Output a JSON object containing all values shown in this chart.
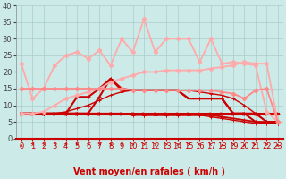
{
  "title": "",
  "xlabel": "Vent moyen/en rafales ( km/h )",
  "xlim": [
    -0.5,
    23.5
  ],
  "ylim": [
    0,
    40
  ],
  "yticks": [
    0,
    5,
    10,
    15,
    20,
    25,
    30,
    35,
    40
  ],
  "xticks": [
    0,
    1,
    2,
    3,
    4,
    5,
    6,
    7,
    8,
    9,
    10,
    11,
    12,
    13,
    14,
    15,
    16,
    17,
    18,
    19,
    20,
    21,
    22,
    23
  ],
  "bg_color": "#cceae8",
  "grid_color": "#aacccc",
  "lines": [
    {
      "x": [
        0,
        1,
        2,
        3,
        4,
        5,
        6,
        7,
        8,
        9,
        10,
        11,
        12,
        13,
        14,
        15,
        16,
        17,
        18,
        19,
        20,
        21,
        22,
        23
      ],
      "y": [
        7.5,
        7.5,
        7.5,
        7.5,
        7.5,
        7.5,
        7.5,
        7.5,
        7.5,
        7.5,
        7.5,
        7.5,
        7.5,
        7.5,
        7.5,
        7.5,
        7.5,
        7.5,
        7.5,
        7.5,
        7.5,
        7.5,
        7.5,
        7.5
      ],
      "color": "#cc0000",
      "lw": 2.2,
      "marker": ">",
      "ms": 2.5
    },
    {
      "x": [
        0,
        1,
        2,
        3,
        4,
        5,
        6,
        7,
        8,
        9,
        10,
        11,
        12,
        13,
        14,
        15,
        16,
        17,
        18,
        19,
        20,
        21,
        22,
        23
      ],
      "y": [
        7.5,
        7.5,
        7.5,
        7.5,
        7.5,
        7.5,
        7.5,
        7.5,
        7.5,
        7.5,
        7.0,
        7.0,
        7.0,
        7.0,
        7.0,
        7.0,
        7.0,
        7.0,
        6.5,
        6.0,
        5.5,
        5.0,
        5.0,
        5.0
      ],
      "color": "#cc0000",
      "lw": 1.3,
      "marker": "+",
      "ms": 3
    },
    {
      "x": [
        0,
        1,
        2,
        3,
        4,
        5,
        6,
        7,
        8,
        9,
        10,
        11,
        12,
        13,
        14,
        15,
        16,
        17,
        18,
        19,
        20,
        21,
        22,
        23
      ],
      "y": [
        7.5,
        7.5,
        7.5,
        7.5,
        7.5,
        7.5,
        7.5,
        7.5,
        7.5,
        7.5,
        7.5,
        7.0,
        7.0,
        7.0,
        7.0,
        7.0,
        7.0,
        6.5,
        6.0,
        5.5,
        5.0,
        4.5,
        4.5,
        4.5
      ],
      "color": "#cc0000",
      "lw": 1.0,
      "marker": "+",
      "ms": 3
    },
    {
      "x": [
        0,
        1,
        2,
        3,
        4,
        5,
        6,
        7,
        8,
        9,
        10,
        11,
        12,
        13,
        14,
        15,
        16,
        17,
        18,
        19,
        20,
        21,
        22,
        23
      ],
      "y": [
        7.5,
        7.5,
        7.5,
        7.5,
        8.0,
        9.0,
        10.0,
        11.5,
        13.0,
        14.0,
        14.5,
        14.5,
        14.5,
        14.5,
        14.5,
        14.5,
        14.0,
        13.5,
        13.0,
        12.0,
        10.0,
        7.5,
        5.0,
        4.5
      ],
      "color": "#cc0000",
      "lw": 1.0,
      "marker": "+",
      "ms": 3
    },
    {
      "x": [
        0,
        1,
        2,
        3,
        4,
        5,
        6,
        7,
        8,
        9,
        10,
        11,
        12,
        13,
        14,
        15,
        16,
        17,
        18,
        19,
        20,
        21,
        22,
        23
      ],
      "y": [
        7.5,
        7.5,
        7.5,
        7.5,
        7.5,
        7.5,
        7.5,
        12.5,
        18.0,
        15.0,
        14.5,
        14.5,
        14.5,
        14.5,
        14.5,
        12.0,
        12.0,
        12.0,
        12.0,
        7.5,
        7.5,
        7.5,
        5.0,
        5.0
      ],
      "color": "#cc0000",
      "lw": 1.5,
      "marker": "+",
      "ms": 3
    },
    {
      "x": [
        0,
        1,
        2,
        3,
        4,
        5,
        6,
        7,
        8,
        9,
        10,
        11,
        12,
        13,
        14,
        15,
        16,
        17,
        18,
        19,
        20,
        21,
        22,
        23
      ],
      "y": [
        7.5,
        7.5,
        7.5,
        7.5,
        7.5,
        12.5,
        12.5,
        15.0,
        18.0,
        14.5,
        14.5,
        14.5,
        14.5,
        14.5,
        14.5,
        12.0,
        12.0,
        12.0,
        12.0,
        7.5,
        7.5,
        5.0,
        4.5,
        4.5
      ],
      "color": "#cc0000",
      "lw": 1.5,
      "marker": "+",
      "ms": 3
    },
    {
      "x": [
        0,
        1,
        2,
        3,
        4,
        5,
        6,
        7,
        8,
        9,
        10,
        11,
        12,
        13,
        14,
        15,
        16,
        17,
        18,
        19,
        20,
        21,
        22,
        23
      ],
      "y": [
        22.5,
        12.0,
        15.0,
        22.0,
        25.0,
        26.0,
        24.0,
        26.5,
        22.0,
        30.0,
        26.0,
        36.0,
        26.0,
        30.0,
        30.0,
        30.0,
        23.0,
        30.0,
        22.5,
        23.0,
        22.5,
        22.0,
        8.0,
        5.0
      ],
      "color": "#ffaaaa",
      "lw": 1.3,
      "marker": "D",
      "ms": 2.5
    },
    {
      "x": [
        0,
        1,
        2,
        3,
        4,
        5,
        6,
        7,
        8,
        9,
        10,
        11,
        12,
        13,
        14,
        15,
        16,
        17,
        18,
        19,
        20,
        21,
        22,
        23
      ],
      "y": [
        7.5,
        7.5,
        8.0,
        10.0,
        12.0,
        13.0,
        14.0,
        15.0,
        17.0,
        18.0,
        19.0,
        20.0,
        20.0,
        20.5,
        20.5,
        20.5,
        20.5,
        21.0,
        21.5,
        22.0,
        23.0,
        22.5,
        22.5,
        5.0
      ],
      "color": "#ffaaaa",
      "lw": 1.3,
      "marker": "D",
      "ms": 2.5
    },
    {
      "x": [
        0,
        1,
        2,
        3,
        4,
        5,
        6,
        7,
        8,
        9,
        10,
        11,
        12,
        13,
        14,
        15,
        16,
        17,
        18,
        19,
        20,
        21,
        22,
        23
      ],
      "y": [
        15.0,
        15.0,
        15.0,
        15.0,
        15.0,
        15.0,
        15.0,
        15.0,
        15.0,
        15.0,
        14.5,
        14.5,
        14.5,
        14.5,
        14.5,
        14.5,
        14.5,
        14.5,
        14.0,
        13.5,
        12.0,
        14.5,
        15.0,
        5.0
      ],
      "color": "#ff8888",
      "lw": 1.3,
      "marker": "D",
      "ms": 2.5
    }
  ],
  "arrow_angles": [
    0,
    45,
    45,
    45,
    45,
    45,
    45,
    45,
    45,
    45,
    45,
    45,
    45,
    45,
    45,
    45,
    -45,
    -45,
    0,
    45,
    0,
    90,
    45,
    0
  ],
  "font_size_xlabel": 7,
  "font_size_tick": 6
}
